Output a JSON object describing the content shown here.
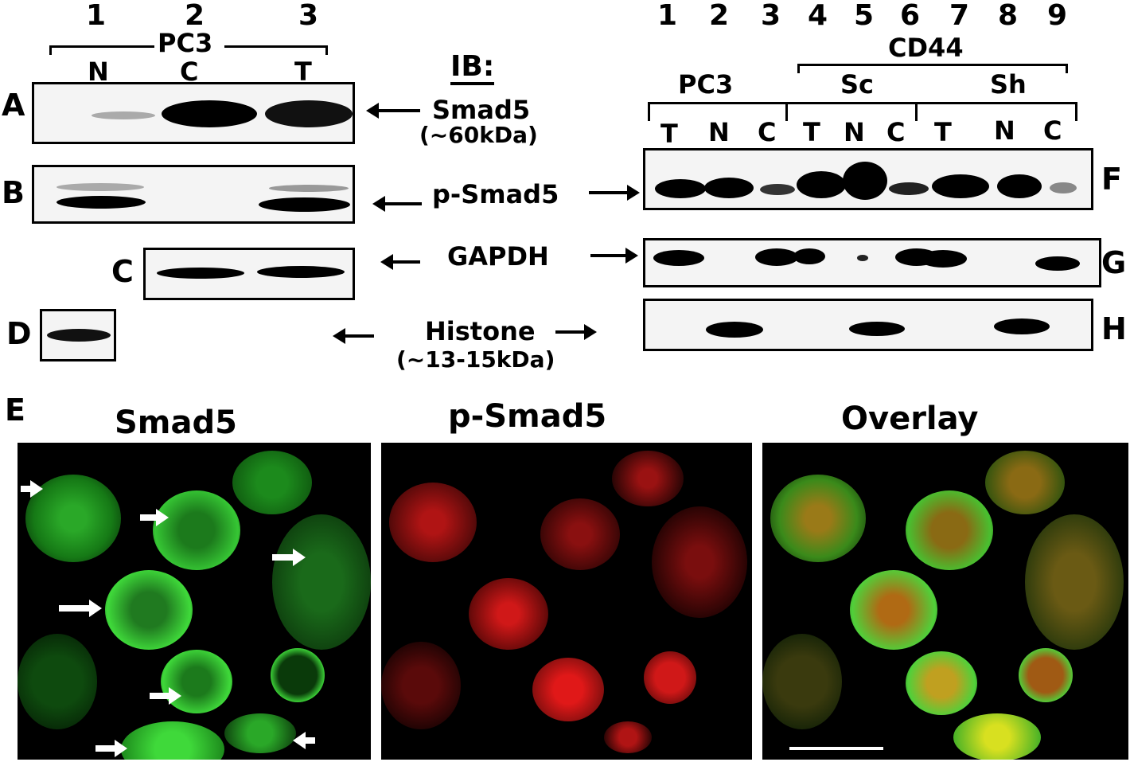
{
  "left_blot": {
    "lanes": [
      "1",
      "2",
      "3"
    ],
    "cell_line": "PC3",
    "fractions": [
      "N",
      "C",
      "T"
    ],
    "panels": {
      "A": "A",
      "B": "B",
      "C": "C",
      "D": "D"
    }
  },
  "ib": {
    "title": "IB:",
    "smad5": "Smad5",
    "smad5_size": "(~60kDa)",
    "psmad5": "p-Smad5",
    "gapdh": "GAPDH",
    "histone": "Histone",
    "histone_size": "(~13-15kDa)"
  },
  "right_blot": {
    "lanes": [
      "1",
      "2",
      "3",
      "4",
      "5",
      "6",
      "7",
      "8",
      "9"
    ],
    "cd44": "CD44",
    "groups": [
      "PC3",
      "Sc",
      "Sh"
    ],
    "fractions": [
      "T",
      "N",
      "C",
      "T",
      "N",
      "C",
      "T",
      "N",
      "C"
    ],
    "panels": {
      "F": "F",
      "G": "G",
      "H": "H"
    }
  },
  "micrographs": {
    "panel": "E",
    "titles": [
      "Smad5",
      "p-Smad5",
      "Overlay"
    ],
    "colors": {
      "green": "#3fd93a",
      "red": "#e01818",
      "yellow": "#d8e020"
    }
  }
}
